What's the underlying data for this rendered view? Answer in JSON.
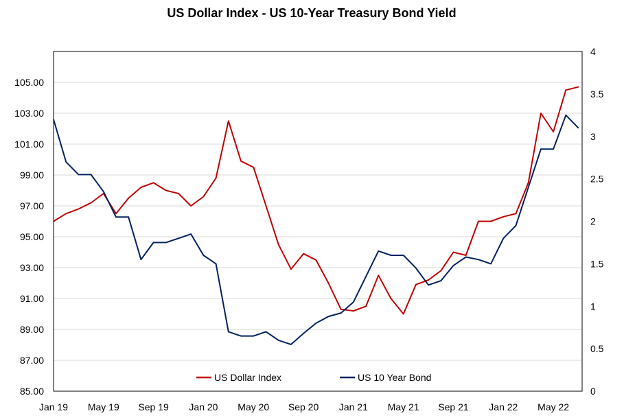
{
  "chart_data": {
    "type": "line",
    "title": "US Dollar Index - US 10-Year Treasury Bond Yield",
    "x_tick_labels": [
      "Jan 19",
      "May 19",
      "Sep 19",
      "Jan 20",
      "May 20",
      "Sep 20",
      "Jan 21",
      "May 21",
      "Sep 21",
      "Jan 22",
      "May 22"
    ],
    "x_range": [
      "Jan 2019",
      "Jul 2022"
    ],
    "y_left": {
      "ylim": [
        85,
        107
      ],
      "tick_labels": [
        "85.00",
        "87.00",
        "89.00",
        "91.00",
        "93.00",
        "95.00",
        "97.00",
        "99.00",
        "101.00",
        "103.00",
        "105.00"
      ]
    },
    "y_right": {
      "ylim": [
        0,
        4
      ],
      "tick_labels": [
        "0",
        "0.5",
        "1",
        "1.5",
        "2",
        "2.5",
        "3",
        "3.5",
        "4"
      ]
    },
    "grid": "horizontal",
    "legend_position": "bottom-center",
    "series": [
      {
        "name": "US Dollar Index",
        "axis": "left",
        "color": "#c00000",
        "x": [
          "2019-01",
          "2019-02",
          "2019-03",
          "2019-04",
          "2019-05",
          "2019-06",
          "2019-07",
          "2019-08",
          "2019-09",
          "2019-10",
          "2019-11",
          "2019-12",
          "2020-01",
          "2020-02",
          "2020-03",
          "2020-04",
          "2020-05",
          "2020-06",
          "2020-07",
          "2020-08",
          "2020-09",
          "2020-10",
          "2020-11",
          "2020-12",
          "2021-01",
          "2021-02",
          "2021-03",
          "2021-04",
          "2021-05",
          "2021-06",
          "2021-07",
          "2021-08",
          "2021-09",
          "2021-10",
          "2021-11",
          "2021-12",
          "2022-01",
          "2022-02",
          "2022-03",
          "2022-04",
          "2022-05",
          "2022-06",
          "2022-07"
        ],
        "values": [
          96.0,
          96.5,
          96.8,
          97.2,
          97.8,
          96.5,
          97.5,
          98.2,
          98.5,
          98.0,
          97.8,
          97.0,
          97.6,
          98.8,
          102.5,
          99.9,
          99.5,
          97.0,
          94.5,
          92.9,
          93.9,
          93.5,
          92.0,
          90.3,
          90.2,
          90.5,
          92.5,
          91.0,
          90.0,
          91.9,
          92.2,
          92.8,
          94.0,
          93.8,
          96.0,
          96.0,
          96.3,
          96.5,
          98.5,
          103.0,
          101.8,
          104.5,
          104.7
        ]
      },
      {
        "name": "US 10 Year Bond",
        "axis": "right",
        "color": "#002060",
        "x": [
          "2019-01",
          "2019-02",
          "2019-03",
          "2019-04",
          "2019-05",
          "2019-06",
          "2019-07",
          "2019-08",
          "2019-09",
          "2019-10",
          "2019-11",
          "2019-12",
          "2020-01",
          "2020-02",
          "2020-03",
          "2020-04",
          "2020-05",
          "2020-06",
          "2020-07",
          "2020-08",
          "2020-09",
          "2020-10",
          "2020-11",
          "2020-12",
          "2021-01",
          "2021-02",
          "2021-03",
          "2021-04",
          "2021-05",
          "2021-06",
          "2021-07",
          "2021-08",
          "2021-09",
          "2021-10",
          "2021-11",
          "2021-12",
          "2022-01",
          "2022-02",
          "2022-03",
          "2022-04",
          "2022-05",
          "2022-06",
          "2022-07"
        ],
        "values": [
          3.2,
          2.7,
          2.55,
          2.55,
          2.35,
          2.05,
          2.05,
          1.55,
          1.75,
          1.75,
          1.8,
          1.85,
          1.6,
          1.5,
          0.7,
          0.65,
          0.65,
          0.7,
          0.6,
          0.55,
          0.68,
          0.8,
          0.88,
          0.92,
          1.05,
          1.35,
          1.65,
          1.6,
          1.6,
          1.45,
          1.25,
          1.3,
          1.48,
          1.58,
          1.55,
          1.5,
          1.8,
          1.95,
          2.4,
          2.85,
          2.85,
          3.25,
          3.1
        ]
      }
    ]
  }
}
